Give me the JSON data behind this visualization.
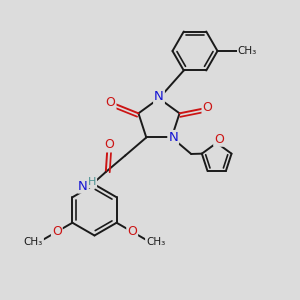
{
  "bg_color": "#dcdcdc",
  "bond_color": "#1a1a1a",
  "bond_width": 1.4,
  "N_color": "#1414d4",
  "O_color": "#cc1414",
  "H_color": "#4a9090",
  "C_color": "#1a1a1a",
  "font_size_atom": 8.5,
  "figsize": [
    3.0,
    3.0
  ],
  "dpi": 100,
  "xlim": [
    0,
    10
  ],
  "ylim": [
    0,
    10
  ]
}
